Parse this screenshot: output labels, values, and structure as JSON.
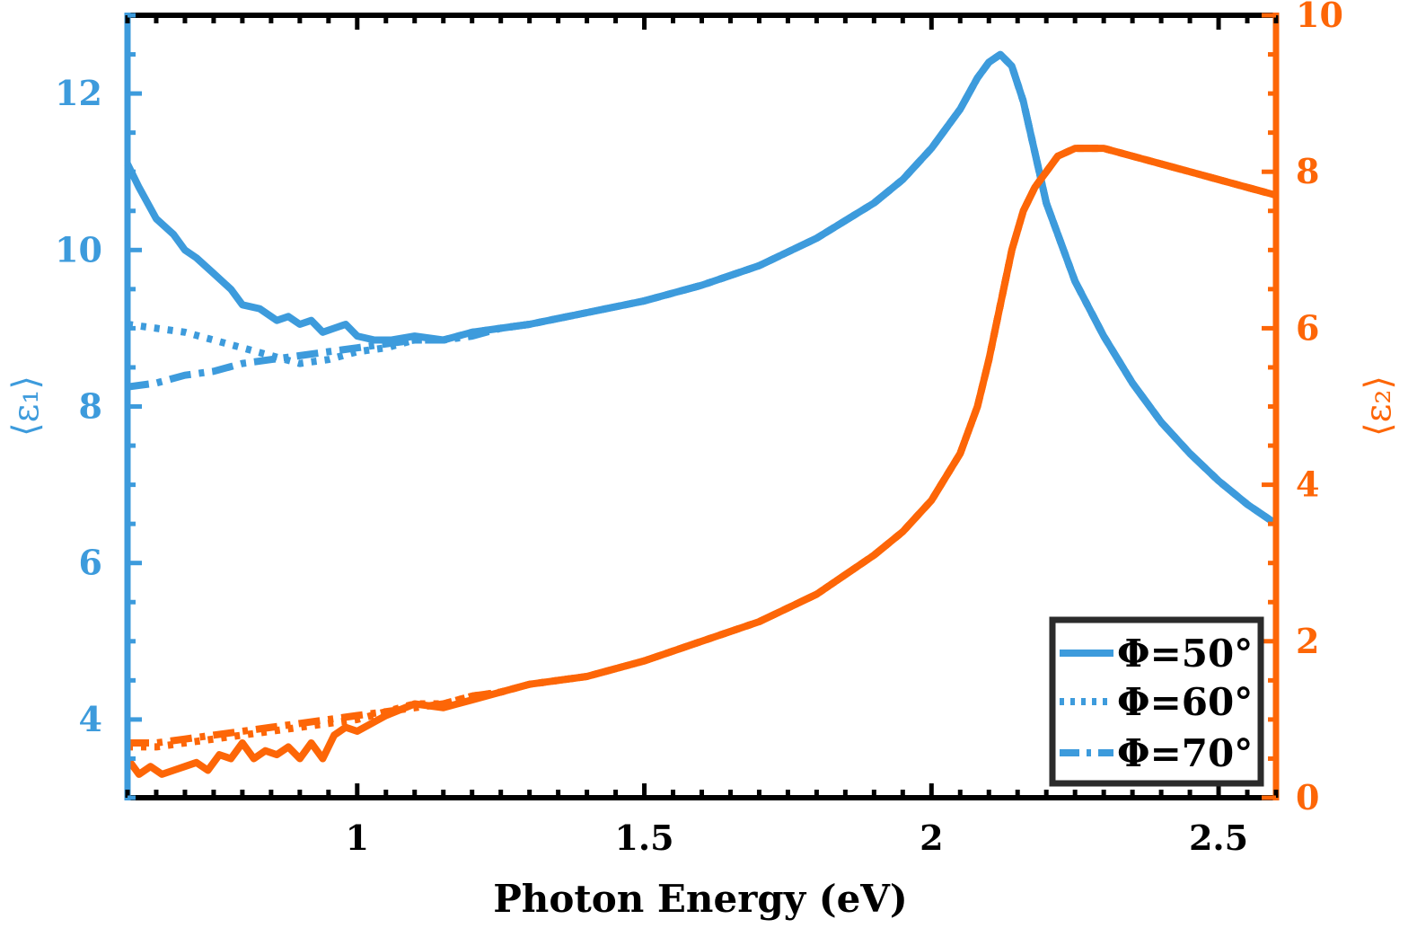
{
  "colors": {
    "eps1": "#3d9bdc",
    "eps2": "#fd6607",
    "axis": "#000000"
  },
  "chart_data": {
    "type": "line",
    "title": "",
    "xlabel": "Photon Energy (eV)",
    "ylabel_left": "⟨ε₁⟩",
    "ylabel_right": "⟨ε₂⟩",
    "xlim": [
      0.6,
      2.6
    ],
    "ylim_left": [
      3,
      13
    ],
    "ylim_right": [
      0,
      10
    ],
    "x_ticks": [
      1,
      1.5,
      2,
      2.5
    ],
    "x_tick_labels": [
      "1",
      "1.5",
      "2",
      "2.5"
    ],
    "y_left_ticks": [
      4,
      6,
      8,
      10,
      12
    ],
    "y_left_tick_labels": [
      "4",
      "6",
      "8",
      "10",
      "12"
    ],
    "y_right_ticks": [
      0,
      2,
      4,
      6,
      8,
      10
    ],
    "y_right_tick_labels": [
      "0",
      "2",
      "4",
      "6",
      "8",
      "10"
    ],
    "legend": {
      "position": "bottom-right",
      "entries": [
        "Φ=50°",
        "Φ=60°",
        "Φ=70°"
      ]
    },
    "series": [
      {
        "name": "Φ=50°",
        "quantity": "eps1",
        "axis": "left",
        "style": "solid",
        "x": [
          0.6,
          0.62,
          0.65,
          0.68,
          0.7,
          0.72,
          0.75,
          0.78,
          0.8,
          0.83,
          0.86,
          0.88,
          0.9,
          0.92,
          0.94,
          0.96,
          0.98,
          1.0,
          1.03,
          1.06,
          1.1,
          1.15,
          1.2,
          1.25,
          1.3,
          1.4,
          1.5,
          1.6,
          1.7,
          1.8,
          1.9,
          1.95,
          2.0,
          2.05,
          2.08,
          2.1,
          2.12,
          2.14,
          2.16,
          2.18,
          2.2,
          2.25,
          2.3,
          2.35,
          2.4,
          2.45,
          2.5,
          2.55,
          2.6
        ],
        "y": [
          11.1,
          10.8,
          10.4,
          10.2,
          10.0,
          9.9,
          9.7,
          9.5,
          9.3,
          9.25,
          9.1,
          9.15,
          9.05,
          9.1,
          8.95,
          9.0,
          9.05,
          8.9,
          8.85,
          8.85,
          8.9,
          8.85,
          8.95,
          9.0,
          9.05,
          9.2,
          9.35,
          9.55,
          9.8,
          10.15,
          10.6,
          10.9,
          11.3,
          11.8,
          12.2,
          12.4,
          12.5,
          12.35,
          11.9,
          11.25,
          10.6,
          9.6,
          8.9,
          8.3,
          7.8,
          7.4,
          7.05,
          6.75,
          6.5
        ]
      },
      {
        "name": "Φ=60°",
        "quantity": "eps1",
        "axis": "left",
        "style": "dotted",
        "x": [
          0.6,
          0.65,
          0.7,
          0.75,
          0.8,
          0.85,
          0.9,
          0.95,
          1.0,
          1.05,
          1.1,
          1.15,
          1.2,
          1.25,
          1.3,
          1.4,
          1.5,
          1.6,
          1.7,
          1.8,
          1.9,
          1.95,
          2.0,
          2.05,
          2.08,
          2.1,
          2.12,
          2.14,
          2.16,
          2.18,
          2.2,
          2.25,
          2.3,
          2.35,
          2.4,
          2.45,
          2.5,
          2.55,
          2.6
        ],
        "y": [
          9.05,
          9.0,
          8.95,
          8.85,
          8.75,
          8.65,
          8.55,
          8.6,
          8.7,
          8.75,
          8.85,
          8.85,
          8.95,
          9.0,
          9.05,
          9.2,
          9.35,
          9.55,
          9.8,
          10.15,
          10.6,
          10.9,
          11.3,
          11.8,
          12.2,
          12.4,
          12.5,
          12.35,
          11.9,
          11.25,
          10.6,
          9.6,
          8.9,
          8.3,
          7.8,
          7.4,
          7.05,
          6.75,
          6.5
        ]
      },
      {
        "name": "Φ=70°",
        "quantity": "eps1",
        "axis": "left",
        "style": "dashdot",
        "x": [
          0.6,
          0.65,
          0.7,
          0.75,
          0.8,
          0.85,
          0.9,
          0.95,
          1.0,
          1.05,
          1.1,
          1.15,
          1.2,
          1.25,
          1.3,
          1.4,
          1.5,
          1.6,
          1.7,
          1.8,
          1.9,
          1.95,
          2.0,
          2.05,
          2.08,
          2.1,
          2.12,
          2.14,
          2.16,
          2.18,
          2.2,
          2.25,
          2.3,
          2.35,
          2.4,
          2.45,
          2.5,
          2.55,
          2.6
        ],
        "y": [
          8.25,
          8.3,
          8.4,
          8.45,
          8.55,
          8.6,
          8.65,
          8.7,
          8.75,
          8.8,
          8.85,
          8.85,
          8.9,
          9.0,
          9.05,
          9.2,
          9.35,
          9.55,
          9.8,
          10.15,
          10.6,
          10.9,
          11.3,
          11.8,
          12.2,
          12.4,
          12.5,
          12.35,
          11.9,
          11.25,
          10.6,
          9.6,
          8.9,
          8.3,
          7.8,
          7.4,
          7.05,
          6.75,
          6.5
        ]
      },
      {
        "name": "Φ=50°",
        "quantity": "eps2",
        "axis": "right",
        "style": "solid",
        "x": [
          0.6,
          0.62,
          0.64,
          0.66,
          0.68,
          0.7,
          0.72,
          0.74,
          0.76,
          0.78,
          0.8,
          0.82,
          0.84,
          0.86,
          0.88,
          0.9,
          0.92,
          0.94,
          0.96,
          0.98,
          1.0,
          1.05,
          1.1,
          1.15,
          1.2,
          1.25,
          1.3,
          1.4,
          1.5,
          1.6,
          1.7,
          1.8,
          1.9,
          1.95,
          2.0,
          2.05,
          2.08,
          2.1,
          2.12,
          2.14,
          2.16,
          2.18,
          2.2,
          2.22,
          2.25,
          2.3,
          2.35,
          2.4,
          2.45,
          2.5,
          2.55,
          2.6
        ],
        "y": [
          0.5,
          0.3,
          0.4,
          0.3,
          0.35,
          0.4,
          0.45,
          0.35,
          0.55,
          0.5,
          0.7,
          0.5,
          0.6,
          0.55,
          0.65,
          0.5,
          0.7,
          0.5,
          0.8,
          0.9,
          0.85,
          1.05,
          1.2,
          1.15,
          1.25,
          1.35,
          1.45,
          1.55,
          1.75,
          2.0,
          2.25,
          2.6,
          3.1,
          3.4,
          3.8,
          4.4,
          5.0,
          5.6,
          6.3,
          7.0,
          7.5,
          7.8,
          8.0,
          8.2,
          8.3,
          8.3,
          8.2,
          8.1,
          8.0,
          7.9,
          7.8,
          7.7
        ]
      },
      {
        "name": "Φ=60°",
        "quantity": "eps2",
        "axis": "right",
        "style": "dotted",
        "x": [
          0.6,
          0.65,
          0.7,
          0.75,
          0.8,
          0.85,
          0.9,
          0.95,
          1.0,
          1.05,
          1.1,
          1.15,
          1.2,
          1.25,
          1.3,
          1.4,
          1.5,
          1.6,
          1.7,
          1.8,
          1.9,
          1.95,
          2.0,
          2.05,
          2.08,
          2.1,
          2.12,
          2.14,
          2.16,
          2.18,
          2.2,
          2.22,
          2.25,
          2.3,
          2.35,
          2.4,
          2.45,
          2.5,
          2.55,
          2.6
        ],
        "y": [
          0.65,
          0.65,
          0.7,
          0.75,
          0.8,
          0.85,
          0.9,
          0.95,
          1.0,
          1.1,
          1.2,
          1.2,
          1.3,
          1.35,
          1.45,
          1.55,
          1.75,
          2.0,
          2.25,
          2.6,
          3.1,
          3.4,
          3.8,
          4.4,
          5.0,
          5.6,
          6.3,
          7.0,
          7.5,
          7.8,
          8.0,
          8.2,
          8.3,
          8.3,
          8.2,
          8.1,
          8.0,
          7.9,
          7.8,
          7.7
        ]
      },
      {
        "name": "Φ=70°",
        "quantity": "eps2",
        "axis": "right",
        "style": "dashdot",
        "x": [
          0.6,
          0.65,
          0.7,
          0.75,
          0.8,
          0.85,
          0.9,
          0.95,
          1.0,
          1.05,
          1.1,
          1.15,
          1.2,
          1.25,
          1.3,
          1.4,
          1.5,
          1.6,
          1.7,
          1.8,
          1.9,
          1.95,
          2.0,
          2.05,
          2.08,
          2.1,
          2.12,
          2.14,
          2.16,
          2.18,
          2.2,
          2.22,
          2.25,
          2.3,
          2.35,
          2.4,
          2.45,
          2.5,
          2.55,
          2.6
        ],
        "y": [
          0.7,
          0.7,
          0.75,
          0.8,
          0.85,
          0.9,
          0.95,
          1.0,
          1.05,
          1.1,
          1.15,
          1.2,
          1.3,
          1.35,
          1.45,
          1.55,
          1.75,
          2.0,
          2.25,
          2.6,
          3.1,
          3.4,
          3.8,
          4.4,
          5.0,
          5.6,
          6.3,
          7.0,
          7.5,
          7.8,
          8.0,
          8.2,
          8.3,
          8.3,
          8.2,
          8.1,
          8.0,
          7.9,
          7.8,
          7.7
        ]
      }
    ]
  }
}
